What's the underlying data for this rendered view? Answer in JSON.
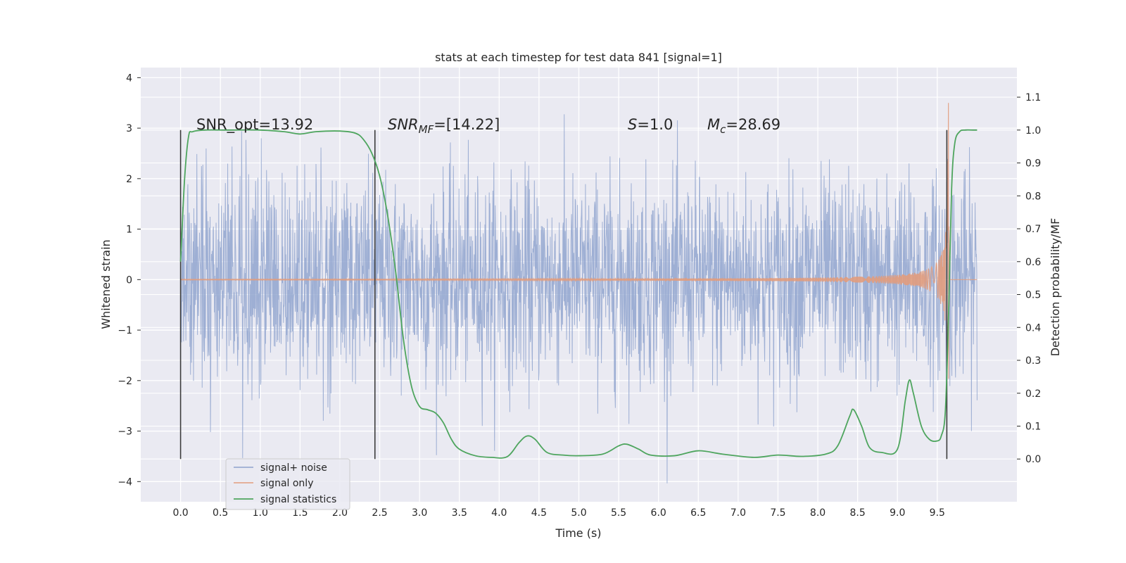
{
  "chart_data": {
    "type": "line",
    "title": "stats at each timestep for test data 841 [signal=1]",
    "xlabel": "Time (s)",
    "ylabel": "Whitened strain",
    "y2label": "Detection probability/MF",
    "xlim": [
      -0.5,
      10.5
    ],
    "ylim": [
      -4.4,
      4.2
    ],
    "y2lim": [
      -0.13,
      1.19
    ],
    "xticks": [
      "0.0",
      "0.5",
      "1.0",
      "1.5",
      "2.0",
      "2.5",
      "3.0",
      "3.5",
      "4.0",
      "4.5",
      "5.0",
      "5.5",
      "6.0",
      "6.5",
      "7.0",
      "7.5",
      "8.0",
      "8.5",
      "9.0",
      "9.5"
    ],
    "yticks": [
      "−4",
      "−3",
      "−2",
      "−1",
      "0",
      "1",
      "2",
      "3",
      "4"
    ],
    "y2ticks": [
      "0.0",
      "0.1",
      "0.2",
      "0.3",
      "0.4",
      "0.5",
      "0.6",
      "0.7",
      "0.8",
      "0.9",
      "1.0",
      "1.1"
    ],
    "grid": true,
    "legend_position": "lower-left",
    "colors": {
      "noise": "#8ea2cd",
      "signal": "#e19c7d",
      "stats": "#4ea55e",
      "marker": "#3b3b3b"
    },
    "annotations": {
      "snr_opt": "SNR_opt=13.92",
      "snr_mf_sym": "SNR",
      "snr_mf_sub": "MF",
      "snr_mf_val": "=[14.22]",
      "s_sym": "S",
      "s_val": "=1.0",
      "mc_sym": "M",
      "mc_sub": "c",
      "mc_val": "=28.69"
    },
    "vertical_markers_s": [
      0.0,
      2.44,
      9.62
    ],
    "noise_duration_s": 10.0,
    "noise_sigma": 1.0,
    "merger_time_s": 9.64,
    "signal_peak_amplitude": 3.5,
    "series": [
      {
        "name": "signal+ noise"
      },
      {
        "name": "signal only"
      },
      {
        "name": "signal statistics",
        "x": [
          0.0,
          0.05,
          0.1,
          0.15,
          0.3,
          0.6,
          1.0,
          1.3,
          1.5,
          1.7,
          2.0,
          2.2,
          2.3,
          2.4,
          2.5,
          2.6,
          2.7,
          2.8,
          2.9,
          3.0,
          3.1,
          3.2,
          3.3,
          3.4,
          3.5,
          3.7,
          3.9,
          4.1,
          4.25,
          4.35,
          4.45,
          4.6,
          4.8,
          5.0,
          5.3,
          5.5,
          5.6,
          5.75,
          5.9,
          6.2,
          6.5,
          6.8,
          7.2,
          7.5,
          7.8,
          8.1,
          8.25,
          8.4,
          8.45,
          8.55,
          8.65,
          8.8,
          9.0,
          9.1,
          9.15,
          9.2,
          9.3,
          9.4,
          9.5,
          9.55,
          9.6,
          9.64,
          9.68,
          9.72,
          9.78,
          9.85,
          9.95,
          10.0
        ],
        "y": [
          0.6,
          0.85,
          0.98,
          0.995,
          1.0,
          1.0,
          1.0,
          0.995,
          0.988,
          0.995,
          0.997,
          0.99,
          0.97,
          0.93,
          0.86,
          0.74,
          0.57,
          0.36,
          0.22,
          0.16,
          0.15,
          0.14,
          0.11,
          0.06,
          0.03,
          0.01,
          0.005,
          0.007,
          0.05,
          0.07,
          0.06,
          0.02,
          0.012,
          0.01,
          0.015,
          0.04,
          0.045,
          0.03,
          0.012,
          0.01,
          0.025,
          0.015,
          0.005,
          0.012,
          0.008,
          0.015,
          0.04,
          0.13,
          0.15,
          0.1,
          0.035,
          0.02,
          0.03,
          0.18,
          0.24,
          0.2,
          0.1,
          0.06,
          0.055,
          0.07,
          0.14,
          0.42,
          0.82,
          0.96,
          0.995,
          1.0,
          1.0,
          1.0
        ]
      }
    ]
  }
}
